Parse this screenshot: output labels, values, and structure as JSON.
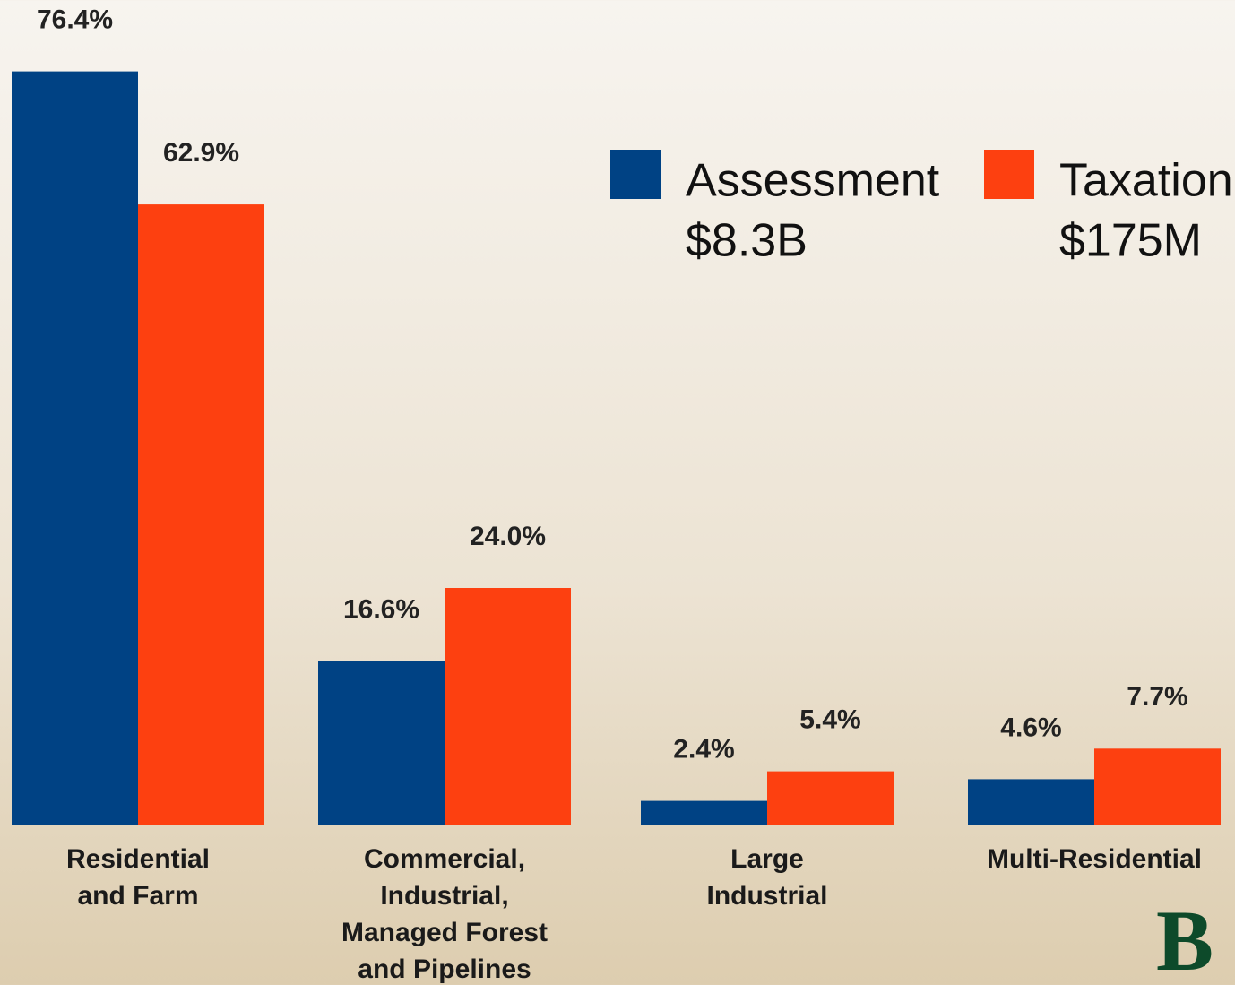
{
  "chart_data": {
    "type": "bar",
    "categories": [
      "Residential\nand Farm",
      "Commercial,\nIndustrial,\nManaged Forest\nand Pipelines",
      "Large\nIndustrial",
      "Multi-Residential"
    ],
    "series": [
      {
        "name": "Assessment",
        "total": "$8.3B",
        "color": "#004284",
        "values": [
          76.4,
          16.6,
          2.4,
          4.6
        ],
        "value_labels": [
          "76.4%",
          "16.6%",
          "2.4%",
          "4.6%"
        ]
      },
      {
        "name": "Taxation",
        "total": "$175M",
        "color": "#fd4010",
        "values": [
          62.9,
          24.0,
          5.4,
          7.7
        ],
        "value_labels": [
          "62.9%",
          "24.0%",
          "5.4%",
          "7.7%"
        ]
      }
    ],
    "ylim": [
      0,
      80
    ],
    "logo_text": "B"
  }
}
